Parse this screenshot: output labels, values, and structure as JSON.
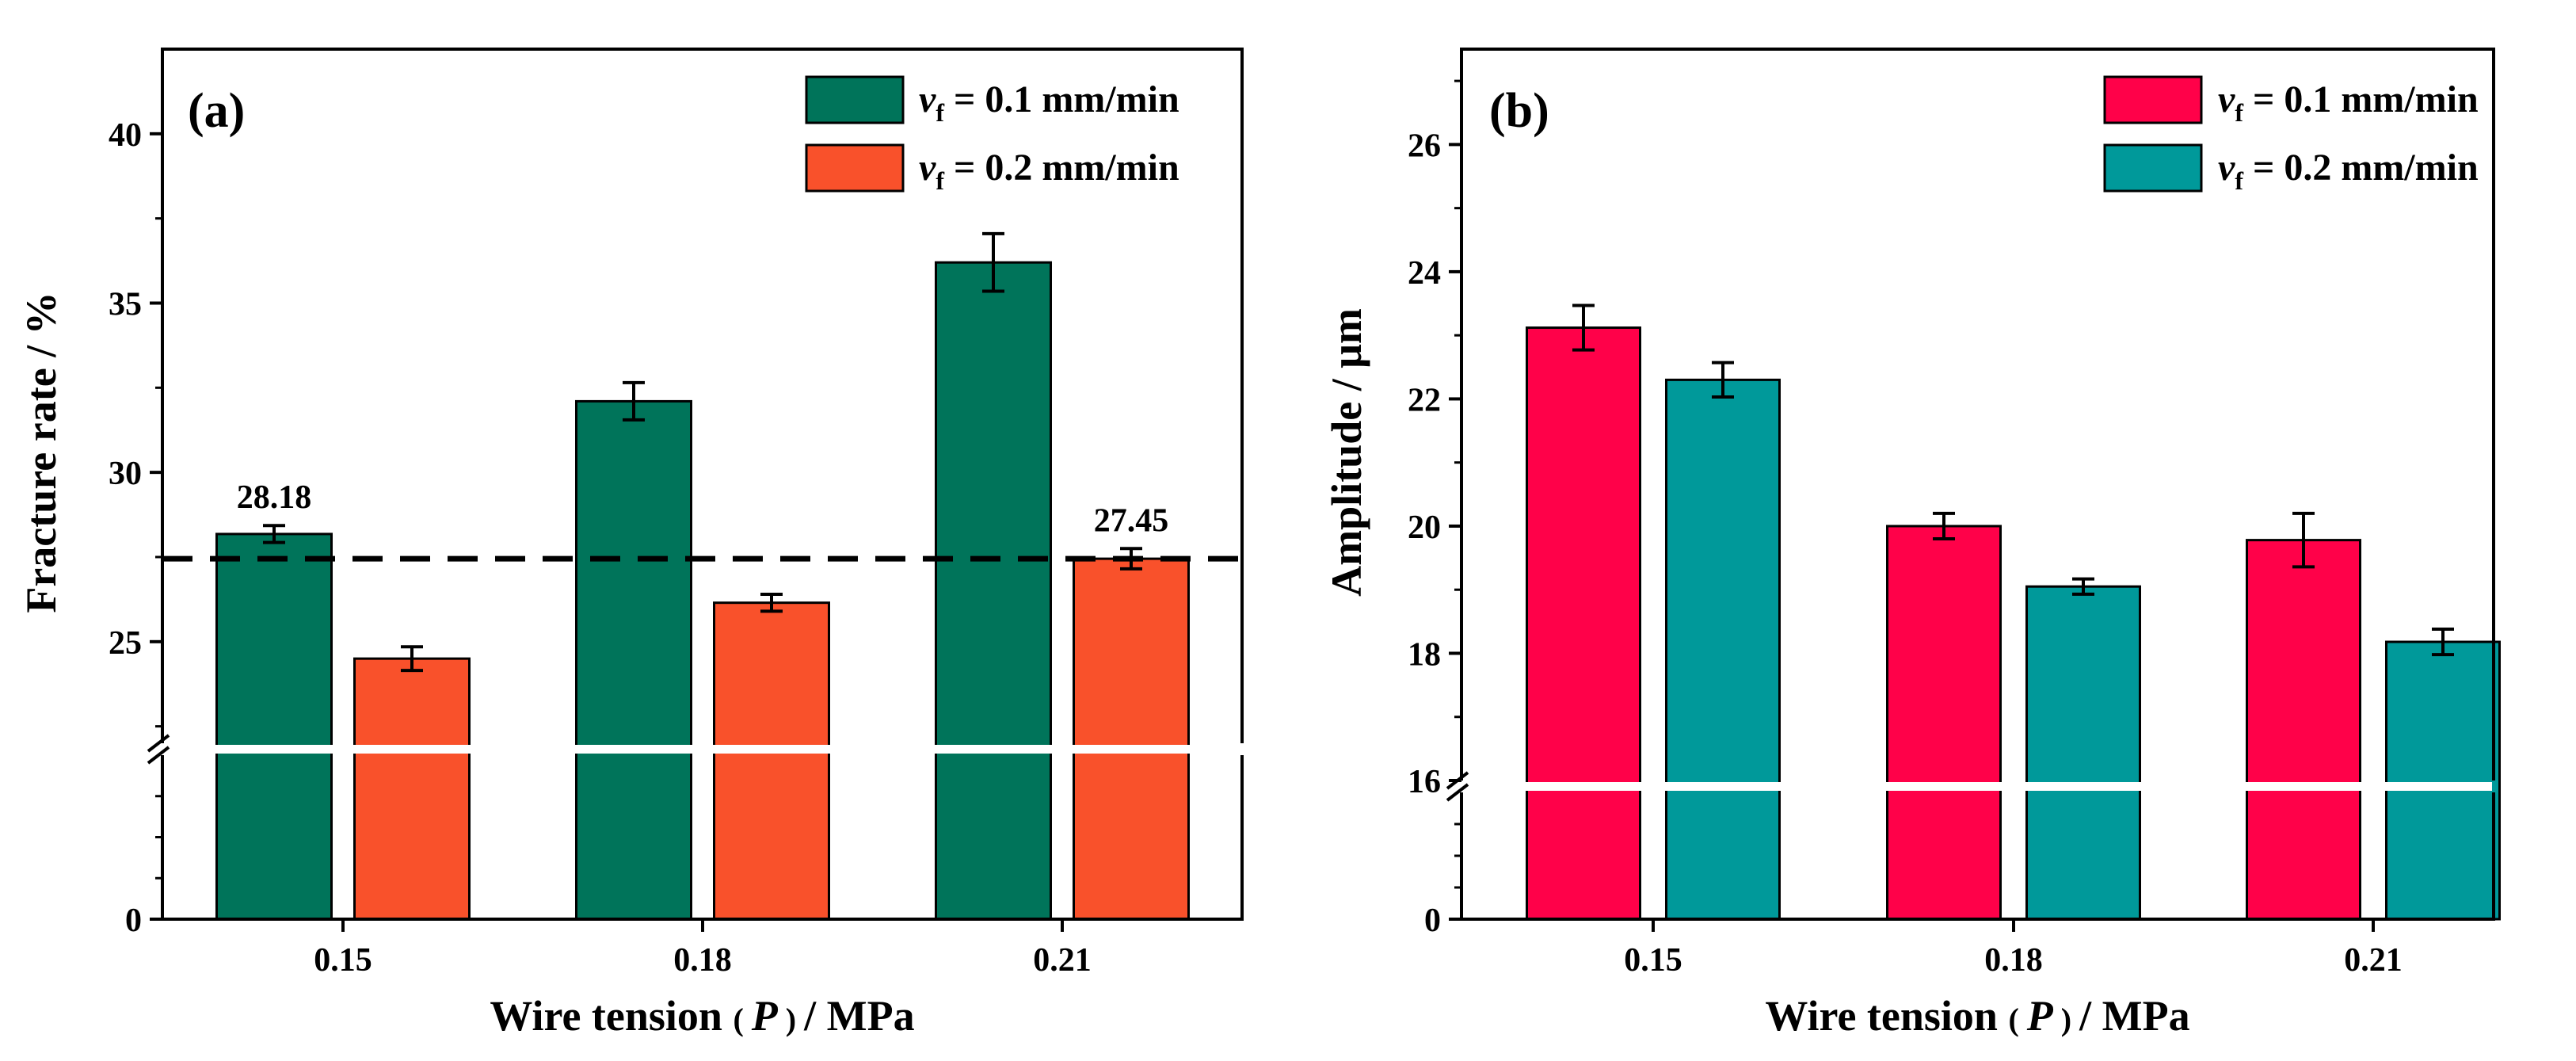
{
  "chart_data": [
    {
      "type": "bar",
      "panel_label": "(a)",
      "categories": [
        "0.15",
        "0.18",
        "0.21"
      ],
      "xlabel": {
        "prefix": "Wire tension",
        "lparen": "(",
        "var": "P",
        "rparen": ")",
        "suffix": "/ MPa"
      },
      "ylabel": "Fracture rate / %",
      "ylim_lower": [
        0,
        22
      ],
      "ylim_upper": [
        22,
        42.5
      ],
      "yticks_upper": [
        25,
        30,
        35,
        40
      ],
      "yticks_upper_labels": [
        "25",
        "30",
        "35",
        "40"
      ],
      "yticks_lower": [
        0
      ],
      "yticks_lower_labels": [
        "0"
      ],
      "axis_break": 22,
      "series": [
        {
          "name": "v_f = 0.1 mm/min",
          "label_var": "v",
          "label_sub": "f",
          "label_rest": "= 0.1 mm/min",
          "color": "#00745a",
          "values": [
            28.18,
            32.1,
            36.2
          ],
          "errors": [
            0.25,
            0.55,
            0.85
          ]
        },
        {
          "name": "v_f = 0.2 mm/min",
          "label_var": "v",
          "label_sub": "f",
          "label_rest": "= 0.2 mm/min",
          "color": "#f9512b",
          "values": [
            24.5,
            26.15,
            27.45
          ],
          "errors": [
            0.35,
            0.25,
            0.3
          ]
        }
      ],
      "reference_line": {
        "value": 27.45,
        "style": "dashed"
      },
      "annotations": [
        {
          "text": "28.18",
          "category": "0.15",
          "series": 0
        },
        {
          "text": "27.45",
          "category": "0.21",
          "series": 1
        }
      ],
      "legend": "top-right"
    },
    {
      "type": "bar",
      "panel_label": "(b)",
      "categories": [
        "0.15",
        "0.18",
        "0.21"
      ],
      "xlabel": {
        "prefix": "Wire tension",
        "lparen": "(",
        "var": "P",
        "rparen": ")",
        "suffix": "/ MPa"
      },
      "ylabel": "Amplitude / μm",
      "ylim_lower": [
        0,
        16
      ],
      "ylim_upper": [
        16,
        27.5
      ],
      "yticks_upper": [
        16,
        18,
        20,
        22,
        24,
        26
      ],
      "yticks_upper_labels": [
        "16",
        "18",
        "20",
        "22",
        "24",
        "26"
      ],
      "yticks_lower": [
        0
      ],
      "yticks_lower_labels": [
        "0"
      ],
      "axis_break": 16,
      "series": [
        {
          "name": "v_f = 0.1 mm/min",
          "label_var": "v",
          "label_sub": "f",
          "label_rest": "= 0.1 mm/min",
          "color": "#ff0149",
          "values": [
            23.12,
            20.0,
            19.78
          ],
          "errors": [
            0.35,
            0.2,
            0.42
          ]
        },
        {
          "name": "v_f = 0.2 mm/min",
          "label_var": "v",
          "label_sub": "f",
          "label_rest": "= 0.2 mm/min",
          "color": "#00999a",
          "values": [
            22.3,
            19.05,
            18.18
          ],
          "errors": [
            0.27,
            0.12,
            0.2
          ]
        }
      ],
      "legend": "top-right"
    }
  ]
}
